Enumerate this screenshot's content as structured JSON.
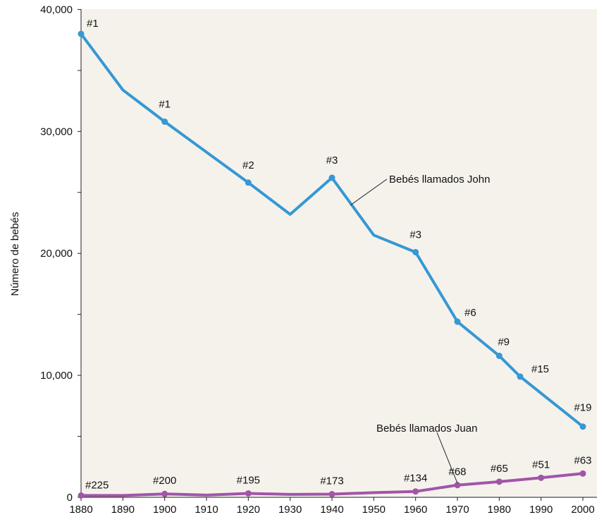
{
  "chart_data": {
    "type": "line",
    "title": "",
    "xlabel": "",
    "ylabel": "Número de bebés",
    "xlim": [
      1880,
      2000
    ],
    "ylim": [
      0,
      40000
    ],
    "grid": false,
    "x_ticks": [
      "1880",
      "1890",
      "1900",
      "1910",
      "1920",
      "1930",
      "1940",
      "1950",
      "1960",
      "1970",
      "1980",
      "1990",
      "2000"
    ],
    "y_tick_labels": [
      {
        "value": 0,
        "label": "0"
      },
      {
        "value": 10000,
        "label": "10,000"
      },
      {
        "value": 20000,
        "label": "20,000"
      },
      {
        "value": 30000,
        "label": "30,000"
      },
      {
        "value": 40000,
        "label": "40,000"
      }
    ],
    "y_minor_ticks": [
      5000,
      15000,
      25000,
      35000
    ],
    "series": [
      {
        "name": "Bebés llamados John",
        "color": "#3598d4",
        "points": [
          {
            "x": 1880,
            "y": 38000,
            "rank": "#1",
            "marker": true
          },
          {
            "x": 1890,
            "y": 33400,
            "rank": "",
            "marker": false
          },
          {
            "x": 1900,
            "y": 30800,
            "rank": "#1",
            "marker": true
          },
          {
            "x": 1920,
            "y": 25800,
            "rank": "#2",
            "marker": true
          },
          {
            "x": 1930,
            "y": 23200,
            "rank": "",
            "marker": false
          },
          {
            "x": 1940,
            "y": 26200,
            "rank": "#3",
            "marker": true
          },
          {
            "x": 1950,
            "y": 21500,
            "rank": "",
            "marker": false
          },
          {
            "x": 1960,
            "y": 20100,
            "rank": "#3",
            "marker": true
          },
          {
            "x": 1970,
            "y": 14400,
            "rank": "#6",
            "marker": true
          },
          {
            "x": 1980,
            "y": 11600,
            "rank": "#9",
            "marker": true
          },
          {
            "x": 1985,
            "y": 9900,
            "rank": "#15",
            "marker": true
          },
          {
            "x": 2000,
            "y": 5800,
            "rank": "#19",
            "marker": true
          }
        ]
      },
      {
        "name": "Bebés llamados Juan",
        "color": "#a155a8",
        "points": [
          {
            "x": 1880,
            "y": 150,
            "rank": "#225",
            "marker": true
          },
          {
            "x": 1890,
            "y": 150,
            "rank": "",
            "marker": false
          },
          {
            "x": 1900,
            "y": 280,
            "rank": "#200",
            "marker": true
          },
          {
            "x": 1910,
            "y": 180,
            "rank": "",
            "marker": false
          },
          {
            "x": 1920,
            "y": 320,
            "rank": "#195",
            "marker": true
          },
          {
            "x": 1930,
            "y": 240,
            "rank": "",
            "marker": false
          },
          {
            "x": 1940,
            "y": 260,
            "rank": "#173",
            "marker": true
          },
          {
            "x": 1950,
            "y": 380,
            "rank": "",
            "marker": false
          },
          {
            "x": 1960,
            "y": 480,
            "rank": "#134",
            "marker": true
          },
          {
            "x": 1970,
            "y": 1000,
            "rank": "#68",
            "marker": true
          },
          {
            "x": 1980,
            "y": 1280,
            "rank": "#65",
            "marker": true
          },
          {
            "x": 1990,
            "y": 1600,
            "rank": "#51",
            "marker": true
          },
          {
            "x": 2000,
            "y": 1950,
            "rank": "#63",
            "marker": true
          }
        ]
      }
    ]
  }
}
